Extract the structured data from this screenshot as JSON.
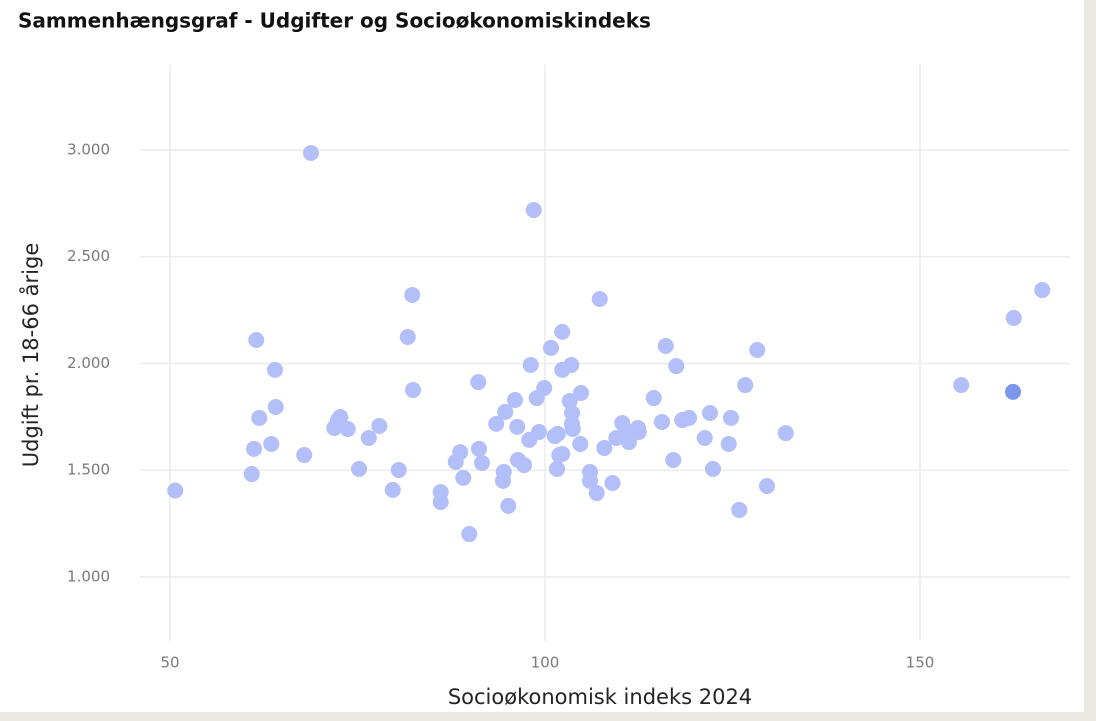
{
  "chart_data": {
    "type": "scatter",
    "title": "Sammenhængsgraf - Udgifter og Socioøkonomiskindeks",
    "x_label": "Socioøkonomisk indeks 2024",
    "y_label": "Udgift pr. 18-66 årige",
    "xlim": [
      46,
      170
    ],
    "ylim": [
      700,
      3400
    ],
    "xticks": [
      50,
      100,
      150
    ],
    "yticks": [
      {
        "value": 1000,
        "label": "1.000"
      },
      {
        "value": 1500,
        "label": "1.500"
      },
      {
        "value": 2000,
        "label": "2.000"
      },
      {
        "value": 2500,
        "label": "2.500"
      },
      {
        "value": 3000,
        "label": "3.000"
      }
    ],
    "grid": true,
    "series": [
      {
        "color": "#b3bff9",
        "x": [
          50.7,
          68.8,
          98.5,
          60.9,
          61.2,
          61.5,
          61.9,
          63.5,
          64.0,
          64.1,
          67.9,
          71.9,
          72.4,
          72.7,
          73.7,
          75.2,
          76.5,
          77.9,
          79.7,
          80.5,
          81.7,
          82.3,
          82.4,
          86.1,
          86.1,
          88.1,
          88.7,
          89.1,
          89.9,
          91.1,
          91.2,
          91.6,
          93.5,
          94.4,
          94.5,
          94.7,
          95.1,
          96.0,
          96.3,
          96.4,
          97.2,
          97.9,
          98.1,
          98.9,
          99.2,
          99.9,
          100.8,
          101.3,
          101.6,
          101.7,
          101.9,
          102.3,
          102.3,
          102.3,
          103.3,
          103.5,
          103.6,
          103.6,
          103.7,
          104.7,
          104.8,
          106.0,
          106.0,
          106.9,
          107.3,
          107.9,
          109.0,
          109.5,
          110.3,
          110.7,
          111.2,
          111.6,
          112.4,
          112.5,
          114.5,
          115.6,
          116.1,
          117.1,
          117.5,
          118.3,
          119.2,
          121.3,
          122.0,
          122.4,
          124.5,
          124.8,
          125.9,
          126.7,
          128.3,
          129.6,
          132.1,
          155.5,
          162.5,
          166.3
        ],
        "values": [
          1405,
          2986,
          2719,
          1482,
          1600,
          2110,
          1745,
          1623,
          1970,
          1796,
          1571,
          1698,
          1735,
          1749,
          1693,
          1506,
          1651,
          1707,
          1408,
          1501,
          2124,
          2321,
          1876,
          1398,
          1351,
          1539,
          1585,
          1464,
          1201,
          1913,
          1600,
          1534,
          1717,
          1450,
          1492,
          1773,
          1333,
          1829,
          1703,
          1548,
          1524,
          1642,
          1993,
          1838,
          1679,
          1885,
          2073,
          1660,
          1506,
          1670,
          1571,
          1576,
          2148,
          1970,
          1824,
          1993,
          1768,
          1717,
          1693,
          1623,
          1862,
          1492,
          1450,
          1393,
          2302,
          1604,
          1440,
          1651,
          1721,
          1656,
          1632,
          1679,
          1698,
          1679,
          1838,
          1726,
          2082,
          1548,
          1988,
          1735,
          1745,
          1651,
          1768,
          1506,
          1623,
          1745,
          1314,
          1899,
          2063,
          1426,
          1674,
          1899,
          2213,
          2344
        ]
      },
      {
        "color": "#7c95ef",
        "x": [
          162.4
        ],
        "values": [
          1867
        ]
      }
    ]
  }
}
